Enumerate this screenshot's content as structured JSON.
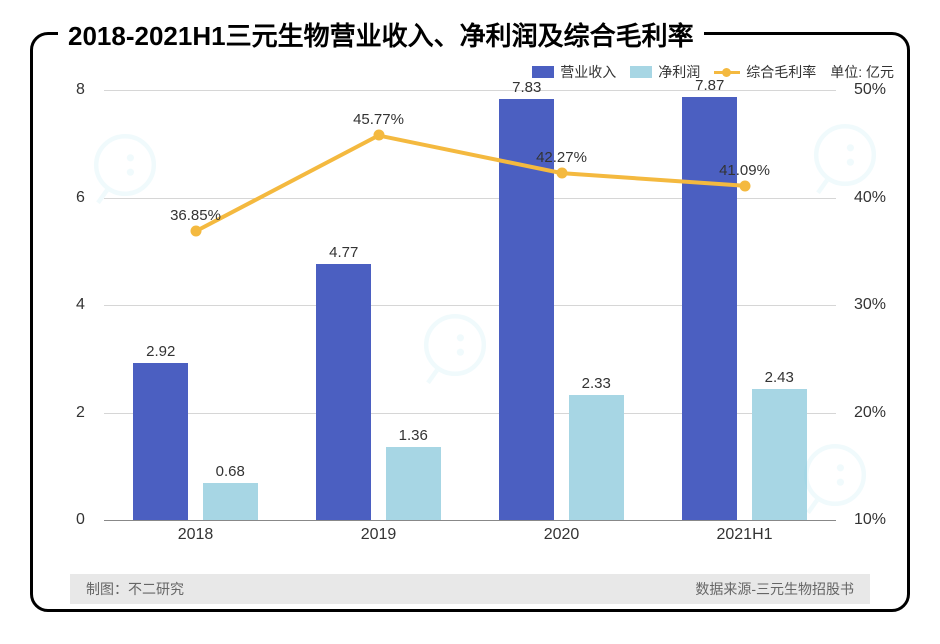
{
  "title": "2018-2021H1三元生物营业收入、净利润及综合毛利率",
  "legend": {
    "s1": "营业收入",
    "s2": "净利润",
    "s3": "综合毛利率",
    "unit": "单位: 亿元"
  },
  "colors": {
    "bar1": "#4b5fc1",
    "bar2": "#a7d6e4",
    "line": "#f4b93f",
    "grid": "#d6d6d6",
    "axis": "#888888",
    "bg": "#ffffff",
    "credit_bg": "#e8e8e8",
    "text": "#333333",
    "wm": "#79d2e6"
  },
  "chart": {
    "type": "bar+line",
    "categories": [
      "2018",
      "2019",
      "2020",
      "2021H1"
    ],
    "bar_width_pct": 7.5,
    "group_gap_pct": 2.0,
    "left_axis": {
      "min": 0,
      "max": 8,
      "ticks": [
        0,
        2,
        4,
        6,
        8
      ]
    },
    "right_axis": {
      "min": 10,
      "max": 50,
      "ticks": [
        10,
        20,
        30,
        40,
        50
      ],
      "suffix": "%"
    },
    "series_bar1": {
      "label": "营业收入",
      "values": [
        2.92,
        4.77,
        7.83,
        7.87
      ]
    },
    "series_bar2": {
      "label": "净利润",
      "values": [
        0.68,
        1.36,
        2.33,
        2.43
      ]
    },
    "series_line": {
      "label": "综合毛利率",
      "values": [
        36.85,
        45.77,
        42.27,
        41.09
      ],
      "suffix": "%"
    }
  },
  "credit": {
    "left": "制图：不二研究",
    "right": "数据来源-三元生物招股书"
  },
  "watermark_text": "不二研究"
}
